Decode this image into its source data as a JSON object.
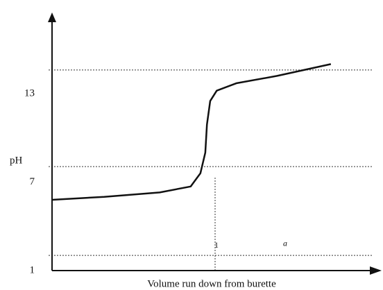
{
  "chart_data": {
    "type": "line",
    "x_label": "Volume run down from burette",
    "y_label": "pH",
    "x": [
      0,
      0.32,
      0.66,
      0.85,
      0.91,
      0.94,
      0.95,
      0.97,
      1.01,
      1.13,
      1.38,
      1.71
    ],
    "series": [
      {
        "color": "#111111",
        "values": [
          5.8,
          6.0,
          6.3,
          6.7,
          7.6,
          9.0,
          10.9,
          12.5,
          13.2,
          13.7,
          14.2,
          15.0
        ]
      }
    ],
    "xlim": [
      0,
      2
    ],
    "ylim": [
      1,
      18.5
    ],
    "xticks": [
      1
    ],
    "yticks": [
      1,
      7,
      13
    ],
    "reference_lines_y": [
      14.6,
      8.05,
      2.03
    ],
    "reference_lines_x": [
      1
    ],
    "annotations": [
      {
        "text": "a",
        "x": 1.43,
        "y": 2.8
      }
    ]
  }
}
